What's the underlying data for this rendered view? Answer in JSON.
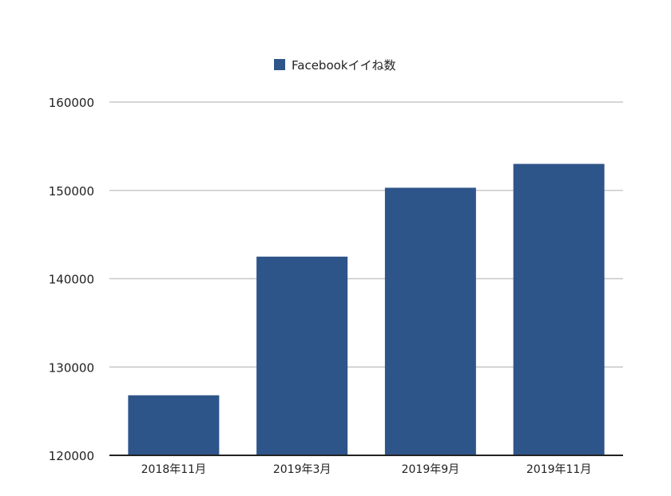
{
  "chart_data": {
    "type": "bar",
    "categories": [
      "2018年11月",
      "2019年3月",
      "2019年9月",
      "2019年11月"
    ],
    "series": [
      {
        "name": "Facebookイイね数",
        "values": [
          126800,
          142500,
          150300,
          153000
        ],
        "color": "#2e5589"
      }
    ],
    "ylim": [
      120000,
      160000
    ],
    "yticks": [
      120000,
      130000,
      140000,
      150000,
      160000
    ],
    "grid": true,
    "legend_position": "top-center"
  }
}
